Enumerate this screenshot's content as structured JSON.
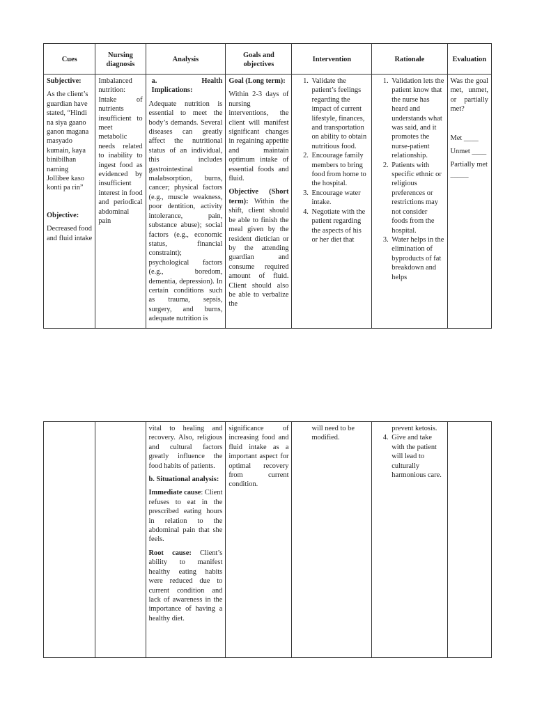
{
  "headers": [
    "Cues",
    "Nursing diagnosis",
    "Analysis",
    "Goals and objectives",
    "Intervention",
    "Rationale",
    "Evaluation"
  ],
  "page1": {
    "cues": {
      "subjective_label": "Subjective:",
      "subjective_text": "As the client’s guardian have stated, “Hindi na siya gaano ganon magana masyado kumain, kaya binibilhan naming Jollibee kaso konti pa rin”",
      "objective_label": "Objective:",
      "objective_text": "Decreased food and fluid intake"
    },
    "diagnosis": "Imbalanced nutrition: Intake of nutrients insufficient to meet metabolic needs related to inability to ingest food as evidenced by insufficient interest in food and periodical abdominal pain",
    "analysis": {
      "heading": "a.  Health Implications:",
      "text": "Adequate nutrition is essential to meet the body’s demands. Several diseases can greatly affect the nutritional status of an individual, this includes gastrointestinal malabsorption, burns, cancer; physical factors (e.g., muscle weakness, poor dentition, activity intolerance, pain, substance abuse); social factors (e.g., economic status, financial constraint); psychological factors (e.g., boredom, dementia, depression). In certain conditions such as trauma, sepsis, surgery, and burns, adequate nutrition is"
    },
    "goals": {
      "long_label": "Goal (Long term):",
      "long_text": "Within 2-3 days of nursing interventions, the client will manifest significant changes in regaining appetite and maintain optimum intake of essential foods and fluid.",
      "short_label": "Objective (Short term):",
      "short_text": "Within the shift, client should be able to finish the meal given by the resident dietician or by the attending guardian and consume required amount of fluid. Client should also be able to verbalize the"
    },
    "interventions": [
      "Validate the patient’s feelings regarding the impact of current lifestyle, finances, and transportation on ability to obtain nutritious food.",
      "Encourage family members to bring food from home to the hospital.",
      "Encourage water intake.",
      "Negotiate with the patient regarding the aspects of his or her diet that"
    ],
    "rationales": [
      "Validation lets the patient know that the nurse has heard and understands what was said, and it promotes the nurse-patient relationship.",
      "Patients with specific ethnic or religious preferences or restrictions may not consider foods from the hospital.",
      "Water helps in the elimination of byproducts of fat breakdown and helps"
    ],
    "evaluation": {
      "question": "Was the goal met, unmet, or partially met?",
      "met": "Met ____",
      "unmet": "Unmet ____",
      "partial": "Partially met _____"
    }
  },
  "page2": {
    "analysis_cont": "vital to healing and recovery. Also, religious and cultural factors greatly influence the food habits of patients.",
    "situational_heading": "b.  Situational analysis:",
    "immediate_label": "Immediate cause",
    "immediate_text": ": Client refuses to eat in the prescribed eating hours in relation to the abdominal pain that she feels.",
    "root_label": "Root cause:",
    "root_text": " Client’s ability to manifest healthy eating habits were reduced due to current condition and lack of awareness in the importance of having a healthy diet.",
    "goals_cont": "significance of increasing food and fluid intake as a important aspect for optimal recovery from current condition.",
    "intervention_cont": "will need to be modified.",
    "rationale_cont": "prevent ketosis.",
    "rationale_4": "Give and take with the patient will lead to culturally harmonious care."
  }
}
